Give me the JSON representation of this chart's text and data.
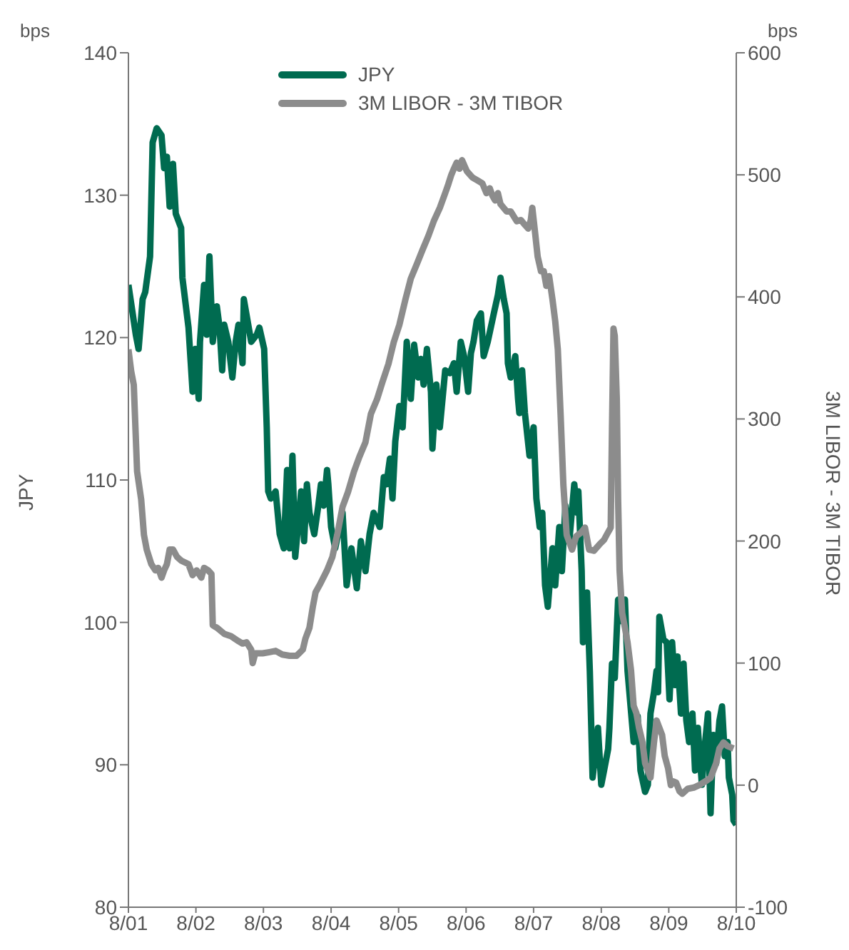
{
  "chart_data": {
    "type": "line",
    "ylabel": "JPY",
    "y2label": "3M LIBOR - 3M TIBOR",
    "annotations": [
      "bps",
      "bps"
    ],
    "xlim": [
      "2001-08-01",
      "2010-08-01"
    ],
    "xticks": [
      {
        "value": "2001-08",
        "label": "8/01"
      },
      {
        "value": "2002-08",
        "label": "8/02"
      },
      {
        "value": "2003-08",
        "label": "8/03"
      },
      {
        "value": "2004-08",
        "label": "8/04"
      },
      {
        "value": "2005-08",
        "label": "8/05"
      },
      {
        "value": "2006-08",
        "label": "8/06"
      },
      {
        "value": "2007-08",
        "label": "8/07"
      },
      {
        "value": "2008-08",
        "label": "8/08"
      },
      {
        "value": "2009-08",
        "label": "8/09"
      },
      {
        "value": "2010-08",
        "label": "8/10"
      }
    ],
    "ylim": [
      80,
      140
    ],
    "yticks": [
      80,
      90,
      100,
      110,
      120,
      130,
      140
    ],
    "y2lim": [
      -100,
      600
    ],
    "y2ticks": [
      -100,
      0,
      100,
      200,
      300,
      400,
      500,
      600
    ],
    "legend": "top",
    "marker": "none",
    "line_style": "solid",
    "series": [
      {
        "name": "JPY",
        "color": "#006b50",
        "x": [
          "2001-08-01",
          "2001-09-10",
          "2001-09-25",
          "2001-10-17",
          "2001-10-31",
          "2001-11-26",
          "2001-12-10",
          "2002-01-01",
          "2002-01-27",
          "2002-02-10",
          "2002-02-25",
          "2002-03-12",
          "2002-03-30",
          "2002-04-14",
          "2002-05-13",
          "2002-05-20",
          "2002-06-22",
          "2002-07-14",
          "2002-07-28",
          "2002-08-16",
          "2002-08-23",
          "2002-09-14",
          "2002-09-28",
          "2002-10-13",
          "2002-10-31",
          "2002-11-22",
          "2002-12-07",
          "2002-12-21",
          "2003-01-01",
          "2003-01-23",
          "2003-02-14",
          "2003-03-04",
          "2003-03-19",
          "2003-04-10",
          "2003-04-17",
          "2003-05-27",
          "2003-06-26",
          "2003-07-10",
          "2003-08-05",
          "2003-08-19",
          "2003-08-27",
          "2003-09-10",
          "2003-10-06",
          "2003-10-28",
          "2003-11-19",
          "2003-12-07",
          "2003-12-21",
          "2004-01-05",
          "2004-01-20",
          "2004-02-21",
          "2004-03-08",
          "2004-03-23",
          "2004-04-06",
          "2004-05-02",
          "2004-05-24",
          "2004-06-07",
          "2004-06-22",
          "2004-07-10",
          "2004-07-17",
          "2004-08-01",
          "2004-08-23",
          "2004-10-02",
          "2004-10-24",
          "2004-11-19",
          "2004-12-18",
          "2005-01-09",
          "2005-02-03",
          "2005-02-25",
          "2005-03-19",
          "2005-04-21",
          "2005-05-13",
          "2005-05-27",
          "2005-06-15",
          "2005-06-29",
          "2005-07-14",
          "2005-08-05",
          "2005-08-23",
          "2005-09-14",
          "2005-10-06",
          "2005-10-24",
          "2005-11-15",
          "2005-11-29",
          "2005-12-14",
          "2006-01-01",
          "2006-01-23",
          "2006-01-31",
          "2006-02-21",
          "2006-03-12",
          "2006-04-10",
          "2006-05-05",
          "2006-05-27",
          "2006-06-11",
          "2006-07-03",
          "2006-07-21",
          "2006-08-12",
          "2006-08-27",
          "2006-09-10",
          "2006-09-28",
          "2006-10-20",
          "2006-11-04",
          "2006-11-26",
          "2006-12-29",
          "2007-01-20",
          "2007-02-03",
          "2007-02-21",
          "2007-03-08",
          "2007-03-15",
          "2007-03-30",
          "2007-04-24",
          "2007-05-09",
          "2007-05-16",
          "2007-05-31",
          "2007-06-15",
          "2007-07-10",
          "2007-08-01",
          "2007-08-16",
          "2007-09-03",
          "2007-09-17",
          "2007-10-02",
          "2007-10-17",
          "2007-11-11",
          "2007-11-26",
          "2007-12-18",
          "2008-01-01",
          "2008-01-20",
          "2008-02-10",
          "2008-03-08",
          "2008-03-23",
          "2008-03-30",
          "2008-04-17",
          "2008-04-24",
          "2008-05-16",
          "2008-05-31",
          "2008-06-15",
          "2008-06-29",
          "2008-07-14",
          "2008-08-01",
          "2008-08-16",
          "2008-09-07",
          "2008-09-14",
          "2008-09-28",
          "2008-10-13",
          "2008-10-31",
          "2008-11-15",
          "2008-12-07",
          "2008-12-21",
          "2009-01-23",
          "2009-02-14",
          "2009-03-01",
          "2009-03-26",
          "2009-04-10",
          "2009-04-24",
          "2009-05-13",
          "2009-05-27",
          "2009-06-04",
          "2009-06-11",
          "2009-07-03",
          "2009-07-21",
          "2009-08-05",
          "2009-08-19",
          "2009-09-03",
          "2009-09-17",
          "2009-10-06",
          "2009-10-20",
          "2009-11-04",
          "2009-11-19",
          "2009-12-07",
          "2009-12-21",
          "2010-01-05",
          "2010-01-27",
          "2010-02-14",
          "2010-03-01",
          "2010-03-15",
          "2010-03-30",
          "2010-04-14",
          "2010-05-02",
          "2010-05-16",
          "2010-05-31",
          "2010-06-15",
          "2010-06-22",
          "2010-07-10",
          "2010-07-17",
          "2010-08-01"
        ],
        "values": [
          123.7,
          120.2,
          119.2,
          122.7,
          123.2,
          125.7,
          133.7,
          134.7,
          134.2,
          131.9,
          132.7,
          129.2,
          132.2,
          128.7,
          127.7,
          124.2,
          120.7,
          116.2,
          119.2,
          115.7,
          119.7,
          123.7,
          120.2,
          125.7,
          119.7,
          122.2,
          120.7,
          117.7,
          120.9,
          119.7,
          117.2,
          119.7,
          120.9,
          118.2,
          122.7,
          119.7,
          120.2,
          120.7,
          119.2,
          113.7,
          109.2,
          108.7,
          109.2,
          106.2,
          105.2,
          110.7,
          105.2,
          111.7,
          104.6,
          109.2,
          105.7,
          109.7,
          107.7,
          106.2,
          108.2,
          109.7,
          108.2,
          110.7,
          109.7,
          106.7,
          105.2,
          107.7,
          102.6,
          105.2,
          102.4,
          105.7,
          103.6,
          106.2,
          107.7,
          106.7,
          110.2,
          109.7,
          111.5,
          108.7,
          112.7,
          115.2,
          113.7,
          119.7,
          115.7,
          119.5,
          117.2,
          118.5,
          116.7,
          119.2,
          116.2,
          112.2,
          116.7,
          113.7,
          117.7,
          117.5,
          118.2,
          116.2,
          119.7,
          118.7,
          116.2,
          118.9,
          119.7,
          121.2,
          121.7,
          118.7,
          119.7,
          121.7,
          123.0,
          124.2,
          122.7,
          121.7,
          118.2,
          117.2,
          118.7,
          115.7,
          114.7,
          117.7,
          114.7,
          111.7,
          113.7,
          108.7,
          106.7,
          107.7,
          102.6,
          101.1,
          105.2,
          102.6,
          106.7,
          103.6,
          108.2,
          105.7,
          109.7,
          107.7,
          109.2,
          103.6,
          98.6,
          102.1,
          96.6,
          89.1,
          90.6,
          92.6,
          88.6,
          89.6,
          91.1,
          92.6,
          97.1,
          96.1,
          101.6,
          100.1,
          101.6,
          96.6,
          91.6,
          93.4,
          89.6,
          88.1,
          88.6,
          93.6,
          95.1,
          96.6,
          95.1,
          100.4,
          98.8,
          98.6,
          94.6,
          98.6,
          95.6,
          97.6,
          93.6,
          97.1,
          93.1,
          91.6,
          93.6,
          89.6,
          92.6,
          88.6,
          91.6,
          93.6,
          86.6,
          92.1,
          90.1,
          93.1,
          94.1,
          90.6,
          91.6,
          89.1,
          87.9,
          86.1,
          85.8
        ]
      },
      {
        "name": "3M LIBOR - 3M TIBOR",
        "color": "#8c8c8c",
        "axis": "y2",
        "x": [
          "2001-08-01",
          "2001-08-16",
          "2001-08-30",
          "2001-09-17",
          "2001-10-09",
          "2001-10-24",
          "2001-11-08",
          "2001-12-03",
          "2001-12-25",
          "2002-01-09",
          "2002-01-27",
          "2002-02-10",
          "2002-02-25",
          "2002-03-12",
          "2002-03-30",
          "2002-04-21",
          "2002-05-13",
          "2002-06-22",
          "2002-07-14",
          "2002-08-05",
          "2002-08-30",
          "2002-09-14",
          "2002-10-06",
          "2002-10-24",
          "2002-10-31",
          "2002-11-22",
          "2003-01-01",
          "2003-02-07",
          "2003-03-19",
          "2003-04-10",
          "2003-05-02",
          "2003-05-27",
          "2003-06-04",
          "2003-06-18",
          "2003-07-28",
          "2003-09-03",
          "2003-10-06",
          "2003-11-11",
          "2003-12-21",
          "2004-01-27",
          "2004-03-01",
          "2004-03-15",
          "2004-04-06",
          "2004-04-24",
          "2004-05-09",
          "2004-05-31",
          "2004-07-10",
          "2004-08-08",
          "2004-09-03",
          "2004-10-02",
          "2004-10-31",
          "2004-12-03",
          "2005-01-01",
          "2005-02-03",
          "2005-03-04",
          "2005-04-06",
          "2005-05-05",
          "2005-06-07",
          "2005-07-06",
          "2005-08-05",
          "2005-09-07",
          "2005-10-06",
          "2005-11-08",
          "2005-12-07",
          "2006-01-09",
          "2006-02-07",
          "2006-03-12",
          "2006-04-10",
          "2006-04-24",
          "2006-05-13",
          "2006-05-27",
          "2006-06-11",
          "2006-06-26",
          "2006-07-10",
          "2006-08-05",
          "2006-09-03",
          "2006-10-06",
          "2006-10-28",
          "2006-11-19",
          "2006-12-07",
          "2006-12-21",
          "2007-01-05",
          "2007-01-20",
          "2007-02-03",
          "2007-03-08",
          "2007-03-30",
          "2007-05-02",
          "2007-05-24",
          "2007-06-15",
          "2007-07-03",
          "2007-07-17",
          "2007-07-25",
          "2007-08-08",
          "2007-08-23",
          "2007-09-10",
          "2007-09-25",
          "2007-10-09",
          "2007-10-24",
          "2007-11-11",
          "2007-11-26",
          "2007-12-10",
          "2007-12-25",
          "2008-01-09",
          "2008-01-27",
          "2008-02-10",
          "2008-02-25",
          "2008-03-19",
          "2008-04-14",
          "2008-05-05",
          "2008-05-27",
          "2008-06-22",
          "2008-07-21",
          "2008-08-16",
          "2008-08-30",
          "2008-09-21",
          "2008-09-28",
          "2008-10-06",
          "2008-10-13",
          "2008-10-24",
          "2008-10-31",
          "2008-11-08",
          "2008-11-22",
          "2008-12-07",
          "2008-12-21",
          "2009-01-09",
          "2009-01-23",
          "2009-02-07",
          "2009-02-21",
          "2009-03-12",
          "2009-03-26",
          "2009-04-10",
          "2009-04-24",
          "2009-05-13",
          "2009-05-27",
          "2009-06-11",
          "2009-06-26",
          "2009-07-10",
          "2009-07-28",
          "2009-08-12",
          "2009-08-27",
          "2009-09-10",
          "2009-09-28",
          "2009-10-13",
          "2009-11-11",
          "2009-12-14",
          "2010-01-12",
          "2010-02-14",
          "2010-03-15",
          "2010-03-30",
          "2010-04-14",
          "2010-05-02",
          "2010-05-24",
          "2010-06-15",
          "2010-07-17"
        ],
        "values": [
          357,
          339,
          328,
          257,
          234,
          205,
          193,
          181,
          176,
          178,
          170,
          176,
          181,
          193,
          193,
          187,
          184,
          181,
          172,
          176,
          170,
          178,
          176,
          173,
          131,
          129,
          124,
          122,
          118,
          116,
          117,
          111,
          100,
          108,
          108,
          109,
          110,
          107,
          106,
          106,
          111,
          120,
          129,
          146,
          158,
          164,
          176,
          187,
          205,
          228,
          240,
          257,
          269,
          281,
          304,
          316,
          330,
          345,
          363,
          377,
          398,
          415,
          427,
          438,
          450,
          462,
          473,
          485,
          491,
          500,
          505,
          510,
          505,
          512,
          503,
          498,
          495,
          493,
          485,
          489,
          483,
          479,
          485,
          476,
          470,
          470,
          462,
          463,
          459,
          456,
          463,
          473,
          454,
          433,
          421,
          421,
          409,
          417,
          398,
          380,
          357,
          304,
          246,
          205,
          199,
          193,
          204,
          207,
          211,
          193,
          192,
          197,
          201,
          205,
          211,
          292,
          374,
          368,
          316,
          234,
          176,
          141,
          129,
          117,
          94,
          65,
          59,
          47,
          35,
          18,
          12,
          6,
          35,
          53,
          47,
          41,
          24,
          14,
          0,
          3,
          2,
          -5,
          -7,
          -3,
          -2,
          0,
          3,
          6,
          12,
          18,
          30,
          35,
          32,
          30
        ]
      }
    ]
  }
}
